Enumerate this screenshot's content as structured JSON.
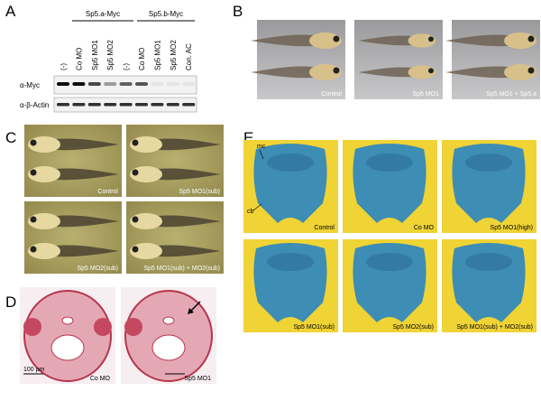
{
  "panel_letters": [
    "A",
    "B",
    "C",
    "D",
    "E"
  ],
  "panel_a": {
    "groups": [
      "Sp5.a-Myc",
      "Sp5.b-Myc"
    ],
    "lanes": [
      "(-)",
      "Co MO",
      "Sp5 MO1",
      "Sp5 MO2",
      "(-)",
      "Co MO",
      "Sp5 MO1",
      "Sp5 MO2",
      "Con. AC"
    ],
    "rows": [
      "α-Myc",
      "α-β-Actin"
    ]
  },
  "panel_b": {
    "captions": [
      "Control",
      "Sp5 MO1",
      "Sp5 MO1 + Sp5.a"
    ]
  },
  "panel_c": {
    "captions": [
      "Control",
      "Sp5 MO1(sub)",
      "Sp5 MO2(sub)",
      "Sp5 MO1(sub) + MO2(sub)"
    ]
  },
  "panel_d": {
    "scale_bar": "100 µm",
    "captions": [
      "Co MO",
      "Sp5 MO1"
    ]
  },
  "panel_e": {
    "annotations": [
      "mc",
      "cb"
    ],
    "captions": [
      "Control",
      "Co MO",
      "Sp5 MO1(high)",
      "Sp5 MO1(sub)",
      "Sp5 MO2(sub)",
      "Sp5 MO1(sub) + MO2(sub)"
    ]
  }
}
